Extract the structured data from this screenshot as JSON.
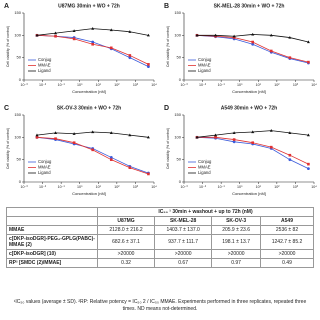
{
  "chart_data": [
    {
      "type": "line",
      "panel": "A",
      "title": "U87MG 30min + WO + 72h",
      "x_label": "Concentration [nM]",
      "y_label": "Cell viability (% of control)",
      "x": [
        0.005,
        0.05,
        0.5,
        5,
        50,
        500,
        5000
      ],
      "xlog": true,
      "xlim": [
        0.001,
        10000
      ],
      "xticks": [
        {
          "value": 0.001,
          "label": "10⁻³"
        },
        {
          "value": 0.01,
          "label": "10⁻²"
        },
        {
          "value": 0.1,
          "label": "10⁻¹"
        },
        {
          "value": 1,
          "label": "10⁰"
        },
        {
          "value": 10,
          "label": "10¹"
        },
        {
          "value": 100,
          "label": "10²"
        },
        {
          "value": 1000,
          "label": "10³"
        },
        {
          "value": 10000,
          "label": "10⁴"
        }
      ],
      "ylim": [
        0,
        150
      ],
      "yticks": [
        0,
        50,
        100,
        150
      ],
      "legend": "lower-left",
      "series": [
        {
          "name": "Conjug",
          "color": "#3b5bdb",
          "values": [
            100,
            98,
            95,
            85,
            70,
            50,
            30
          ]
        },
        {
          "name": "MMAE",
          "color": "#e03131",
          "values": [
            100,
            98,
            92,
            80,
            72,
            55,
            35
          ]
        },
        {
          "name": "Ligand",
          "color": "#111111",
          "values": [
            100,
            105,
            110,
            115,
            112,
            108,
            100
          ]
        }
      ]
    },
    {
      "type": "line",
      "panel": "B",
      "title": "SK-MEL-28 30min + WO + 72h",
      "x_label": "Concentration [nM]",
      "y_label": "Cell viability (% of control)",
      "x": [
        0.005,
        0.05,
        0.5,
        5,
        50,
        500,
        5000
      ],
      "xlog": true,
      "xlim": [
        0.001,
        10000
      ],
      "xticks": [
        {
          "value": 0.001,
          "label": "10⁻³"
        },
        {
          "value": 0.01,
          "label": "10⁻²"
        },
        {
          "value": 0.1,
          "label": "10⁻¹"
        },
        {
          "value": 1,
          "label": "10⁰"
        },
        {
          "value": 10,
          "label": "10¹"
        },
        {
          "value": 100,
          "label": "10²"
        },
        {
          "value": 1000,
          "label": "10³"
        },
        {
          "value": 10000,
          "label": "10⁴"
        }
      ],
      "ylim": [
        0,
        150
      ],
      "yticks": [
        0,
        50,
        100,
        150
      ],
      "legend": "lower-left",
      "series": [
        {
          "name": "Conjug",
          "color": "#3b5bdb",
          "values": [
            100,
            97,
            92,
            80,
            62,
            48,
            38
          ]
        },
        {
          "name": "MMAE",
          "color": "#e03131",
          "values": [
            100,
            98,
            95,
            85,
            65,
            50,
            40
          ]
        },
        {
          "name": "Ligand",
          "color": "#111111",
          "values": [
            100,
            100,
            98,
            102,
            100,
            95,
            85
          ]
        }
      ]
    },
    {
      "type": "line",
      "panel": "C",
      "title": "SK-OV-3 30min + WO + 72h",
      "x_label": "Concentration [nM]",
      "y_label": "Cell viability (% of control)",
      "x": [
        0.005,
        0.05,
        0.5,
        5,
        50,
        500,
        5000
      ],
      "xlog": true,
      "xlim": [
        0.001,
        10000
      ],
      "xticks": [
        {
          "value": 0.001,
          "label": "10⁻³"
        },
        {
          "value": 0.01,
          "label": "10⁻²"
        },
        {
          "value": 0.1,
          "label": "10⁻¹"
        },
        {
          "value": 1,
          "label": "10⁰"
        },
        {
          "value": 10,
          "label": "10¹"
        },
        {
          "value": 100,
          "label": "10²"
        },
        {
          "value": 1000,
          "label": "10³"
        },
        {
          "value": 10000,
          "label": "10⁴"
        }
      ],
      "ylim": [
        0,
        150
      ],
      "yticks": [
        0,
        50,
        100,
        150
      ],
      "legend": "lower-left",
      "series": [
        {
          "name": "Conjug",
          "color": "#3b5bdb",
          "values": [
            100,
            95,
            85,
            75,
            55,
            35,
            20
          ]
        },
        {
          "name": "MMAE",
          "color": "#e03131",
          "values": [
            100,
            97,
            88,
            72,
            50,
            32,
            18
          ]
        },
        {
          "name": "Ligand",
          "color": "#111111",
          "values": [
            105,
            110,
            108,
            112,
            110,
            105,
            100
          ]
        }
      ]
    },
    {
      "type": "line",
      "panel": "D",
      "title": "A549 30min + WO + 72h",
      "x_label": "Concentration [nM]",
      "y_label": "Cell viability (% of control)",
      "x": [
        0.005,
        0.05,
        0.5,
        5,
        50,
        500,
        5000
      ],
      "xlog": true,
      "xlim": [
        0.001,
        10000
      ],
      "xticks": [
        {
          "value": 0.001,
          "label": "10⁻³"
        },
        {
          "value": 0.01,
          "label": "10⁻²"
        },
        {
          "value": 0.1,
          "label": "10⁻¹"
        },
        {
          "value": 1,
          "label": "10⁰"
        },
        {
          "value": 10,
          "label": "10¹"
        },
        {
          "value": 100,
          "label": "10²"
        },
        {
          "value": 1000,
          "label": "10³"
        },
        {
          "value": 10000,
          "label": "10⁴"
        }
      ],
      "ylim": [
        0,
        150
      ],
      "yticks": [
        0,
        50,
        100,
        150
      ],
      "legend": "lower-left",
      "series": [
        {
          "name": "Conjug",
          "color": "#3b5bdb",
          "values": [
            100,
            98,
            90,
            85,
            75,
            50,
            30
          ]
        },
        {
          "name": "MMAE",
          "color": "#e03131",
          "values": [
            100,
            100,
            95,
            88,
            78,
            60,
            40
          ]
        },
        {
          "name": "Ligand",
          "color": "#111111",
          "values": [
            100,
            105,
            110,
            112,
            115,
            110,
            105
          ]
        }
      ]
    }
  ],
  "table": {
    "header": [
      "IC₅₀ ¹ 30min + washout + up to 72h (nM)"
    ],
    "columns": [
      "U87MG",
      "SK-MEL-28",
      "SK-OV-3",
      "A549"
    ],
    "rows": [
      [
        "MMAE",
        "2128.0 ± 216.2",
        "1403.7 ± 137.0",
        "205.9 ± 23.6",
        "2536 ± 82"
      ],
      [
        "c[DKP-isoDGR]-PEG₄-GPLG(PABC)-MMAE (2)",
        "682.6 ± 37.1",
        "937.7 ± 111.7",
        "198.1 ± 13.7",
        "1242.7 ± 85.2"
      ],
      [
        "c[DKP-isoDGR] (10)",
        ">20000",
        ">20000",
        ">20000",
        ">20000"
      ],
      [
        "RP² [SMDC (2)/MMAE]",
        "0.32",
        "0.67",
        "0.97",
        "0.49"
      ]
    ]
  },
  "footnote": "¹IC₅₀ values (average ± SD). ²RP: Relative potency = IC₅₀ 2 / IC₅₀ MMAE. Experiments performed in three replicates, repeated three times. ND means not-determined."
}
